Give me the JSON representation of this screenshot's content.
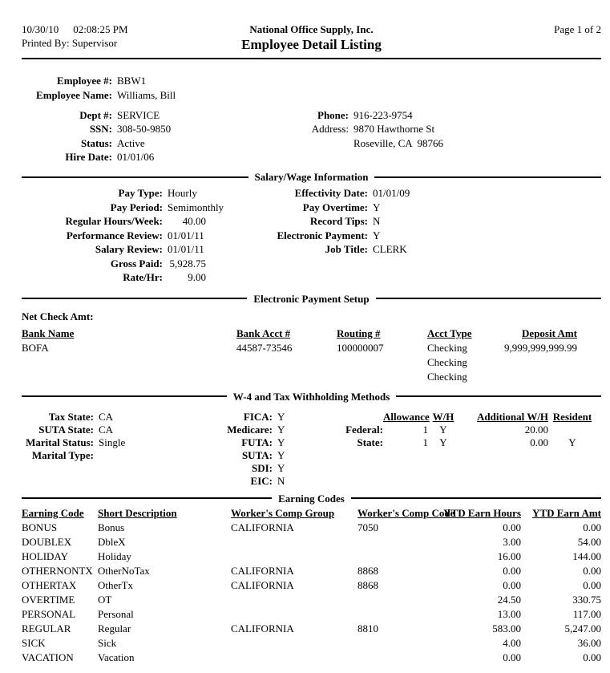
{
  "header": {
    "date": "10/30/10",
    "time": "02:08:25 PM",
    "printed_by_label": "Printed By:",
    "printed_by_value": "Supervisor",
    "company_name": "National Office Supply, Inc.",
    "report_title": "Employee Detail Listing",
    "page_indicator": "Page 1 of 2"
  },
  "employee": {
    "number_label": "Employee #:",
    "number": "BBW1",
    "name_label": "Employee Name:",
    "name": "Williams, Bill",
    "dept_label": "Dept #:",
    "dept": "SERVICE",
    "ssn_label": "SSN:",
    "ssn": "308-50-9850",
    "status_label": "Status:",
    "status": "Active",
    "hire_date_label": "Hire Date:",
    "hire_date": "01/01/06",
    "phone_label": "Phone:",
    "phone": "916-223-9754",
    "address_label": "Address:",
    "address_line1": "9870 Hawthorne St",
    "address_line2": "Roseville, CA  98766"
  },
  "salary_wage": {
    "section_title": "Salary/Wage Information",
    "pay_type_label": "Pay Type:",
    "pay_type": "Hourly",
    "pay_period_label": "Pay Period:",
    "pay_period": "Semimonthly",
    "regular_hours_label": "Regular Hours/Week:",
    "regular_hours": "40.00",
    "performance_review_label": "Performance Review:",
    "performance_review": "01/01/11",
    "salary_review_label": "Salary Review:",
    "salary_review": "01/01/11",
    "gross_paid_label": "Gross Paid:",
    "gross_paid": "5,928.75",
    "rate_hr_label": "Rate/Hr:",
    "rate_hr": "9.00",
    "effectivity_date_label": "Effectivity Date:",
    "effectivity_date": "01/01/09",
    "pay_overtime_label": "Pay Overtime:",
    "pay_overtime": "Y",
    "record_tips_label": "Record Tips:",
    "record_tips": "N",
    "electronic_payment_label": "Electronic Payment:",
    "electronic_payment": "Y",
    "job_title_label": "Job Title:",
    "job_title": "CLERK"
  },
  "payment_setup": {
    "section_title": "Electronic Payment Setup",
    "net_check_label": "Net Check Amt:",
    "columns": [
      "Bank Name",
      "Bank Acct #",
      "Routing #",
      "Acct Type",
      "Deposit Amt"
    ],
    "rows": [
      {
        "bank_name": "BOFA",
        "bank_acct": "44587-73546",
        "routing": "100000007",
        "acct_type": "Checking",
        "deposit_amt": "9,999,999,999.99"
      },
      {
        "bank_name": "",
        "bank_acct": "",
        "routing": "",
        "acct_type": "Checking",
        "deposit_amt": ""
      },
      {
        "bank_name": "",
        "bank_acct": "",
        "routing": "",
        "acct_type": "Checking",
        "deposit_amt": ""
      }
    ]
  },
  "w4": {
    "section_title": "W-4 and Tax Withholding Methods",
    "tax_state_label": "Tax State:",
    "tax_state": "CA",
    "suta_state_label": "SUTA State:",
    "suta_state": "CA",
    "marital_status_label": "Marital Status:",
    "marital_status": "Single",
    "marital_type_label": "Marital Type:",
    "marital_type": "",
    "fica_label": "FICA:",
    "fica": "Y",
    "medicare_label": "Medicare:",
    "medicare": "Y",
    "futa_label": "FUTA:",
    "futa": "Y",
    "suta_label": "SUTA:",
    "suta": "Y",
    "sdi_label": "SDI:",
    "sdi": "Y",
    "eic_label": "EIC:",
    "eic": "N",
    "withholding_columns": [
      "Allowance",
      "W/H",
      "Additional W/H",
      "Resident"
    ],
    "withholding_rows": [
      {
        "level_label": "Federal:",
        "allowance": "1",
        "wh": "Y",
        "additional_wh": "20.00",
        "resident": ""
      },
      {
        "level_label": "State:",
        "allowance": "1",
        "wh": "Y",
        "additional_wh": "0.00",
        "resident": "Y"
      }
    ]
  },
  "earning_codes": {
    "section_title": "Earning Codes",
    "columns": [
      "Earning Code",
      "Short Description",
      "Worker's Comp Group",
      "Worker's Comp Code",
      "YTD Earn Hours",
      "YTD Earn Amt"
    ],
    "rows": [
      {
        "code": "BONUS",
        "short_desc": "Bonus",
        "comp_group": "CALIFORNIA",
        "comp_code": "7050",
        "ytd_hours": "0.00",
        "ytd_amt": "0.00"
      },
      {
        "code": "DOUBLEX",
        "short_desc": "DbleX",
        "comp_group": "",
        "comp_code": "",
        "ytd_hours": "3.00",
        "ytd_amt": "54.00"
      },
      {
        "code": "HOLIDAY",
        "short_desc": "Holiday",
        "comp_group": "",
        "comp_code": "",
        "ytd_hours": "16.00",
        "ytd_amt": "144.00"
      },
      {
        "code": "OTHERNONTX",
        "short_desc": "OtherNoTax",
        "comp_group": "CALIFORNIA",
        "comp_code": "8868",
        "ytd_hours": "0.00",
        "ytd_amt": "0.00"
      },
      {
        "code": "OTHERTAX",
        "short_desc": "OtherTx",
        "comp_group": "CALIFORNIA",
        "comp_code": "8868",
        "ytd_hours": "0.00",
        "ytd_amt": "0.00"
      },
      {
        "code": "OVERTIME",
        "short_desc": "OT",
        "comp_group": "",
        "comp_code": "",
        "ytd_hours": "24.50",
        "ytd_amt": "330.75"
      },
      {
        "code": "PERSONAL",
        "short_desc": "Personal",
        "comp_group": "",
        "comp_code": "",
        "ytd_hours": "13.00",
        "ytd_amt": "117.00"
      },
      {
        "code": "REGULAR",
        "short_desc": "Regular",
        "comp_group": "CALIFORNIA",
        "comp_code": "8810",
        "ytd_hours": "583.00",
        "ytd_amt": "5,247.00"
      },
      {
        "code": "SICK",
        "short_desc": "Sick",
        "comp_group": "",
        "comp_code": "",
        "ytd_hours": "4.00",
        "ytd_amt": "36.00"
      },
      {
        "code": "VACATION",
        "short_desc": "Vacation",
        "comp_group": "",
        "comp_code": "",
        "ytd_hours": "0.00",
        "ytd_amt": "0.00"
      }
    ]
  }
}
